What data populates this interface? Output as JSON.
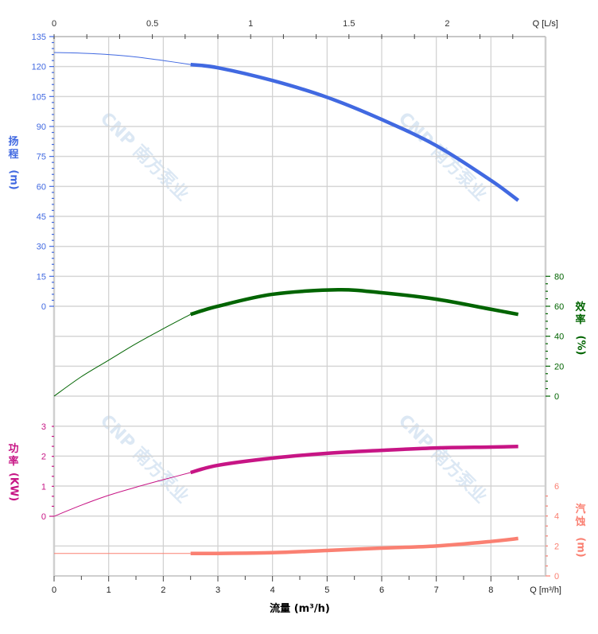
{
  "chart_data": {
    "type": "line",
    "title": "",
    "xlabel": "流量 (m³/h)",
    "x_unit_label": "Q [m³/h]",
    "x_top_unit_label": "Q [L/s]",
    "xlim": [
      0,
      9
    ],
    "x_ticks": [
      0,
      1,
      2,
      3,
      4,
      5,
      6,
      7,
      8
    ],
    "x_top_ticks": [
      "0",
      "0.5",
      "1",
      "1.5",
      "2"
    ],
    "x_top_tick_values": [
      0,
      0.5,
      1,
      1.5,
      2
    ],
    "x_top_lim": [
      0,
      2.5
    ],
    "grid": true,
    "operating_range": [
      2.5,
      8.5
    ],
    "axes": {
      "head": {
        "label": "扬程",
        "unit": "(m)",
        "ylim": [
          0,
          135
        ],
        "ticks": [
          0,
          15,
          30,
          45,
          60,
          75,
          90,
          105,
          120,
          135
        ],
        "color": "#4169e1",
        "side": "left"
      },
      "efficiency": {
        "label": "效率",
        "unit": "(%)",
        "ylim": [
          0,
          80
        ],
        "ticks": [
          0,
          20,
          40,
          60,
          80
        ],
        "color": "#006400",
        "side": "right"
      },
      "power": {
        "label": "功率",
        "unit": "(KW)",
        "ylim": [
          0,
          3
        ],
        "ticks": [
          0,
          1,
          2,
          3
        ],
        "color": "#c71585",
        "side": "left"
      },
      "npsh": {
        "label": "汽蚀",
        "unit": "(m)",
        "ylim": [
          0,
          6
        ],
        "ticks": [
          0,
          2,
          4,
          6
        ],
        "color": "#fa8072",
        "side": "right"
      }
    },
    "series": [
      {
        "axis": "head",
        "color": "#4169e1",
        "x": [
          0,
          0.5,
          1,
          1.5,
          2,
          2.5,
          3,
          4,
          5,
          6,
          7,
          8,
          8.5
        ],
        "y": [
          127,
          126.7,
          126,
          124.8,
          123,
          121,
          119.4,
          113,
          104.6,
          93.5,
          80.4,
          63,
          53
        ]
      },
      {
        "axis": "efficiency",
        "color": "#006400",
        "x": [
          0,
          0.5,
          1,
          1.5,
          2,
          2.5,
          3,
          4,
          5.2,
          6,
          7,
          8,
          8.5
        ],
        "y": [
          0,
          13,
          24,
          35,
          45,
          54.6,
          60,
          68,
          71,
          69,
          64.7,
          58,
          54.6
        ]
      },
      {
        "axis": "power",
        "color": "#c71585",
        "x": [
          0,
          0.5,
          1,
          1.5,
          2,
          2.5,
          3,
          4,
          5,
          6,
          7,
          8,
          8.5
        ],
        "y": [
          0,
          0.37,
          0.7,
          0.97,
          1.22,
          1.46,
          1.7,
          1.94,
          2.1,
          2.2,
          2.28,
          2.31,
          2.33
        ]
      },
      {
        "axis": "npsh",
        "color": "#fa8072",
        "x": [
          0,
          1,
          2,
          2.5,
          3,
          4,
          5,
          6,
          7,
          8,
          8.5
        ],
        "y": [
          1.5,
          1.5,
          1.5,
          1.5,
          1.5,
          1.55,
          1.7,
          1.86,
          2.0,
          2.3,
          2.5
        ]
      }
    ]
  },
  "watermark": "CNP 南方泵业"
}
